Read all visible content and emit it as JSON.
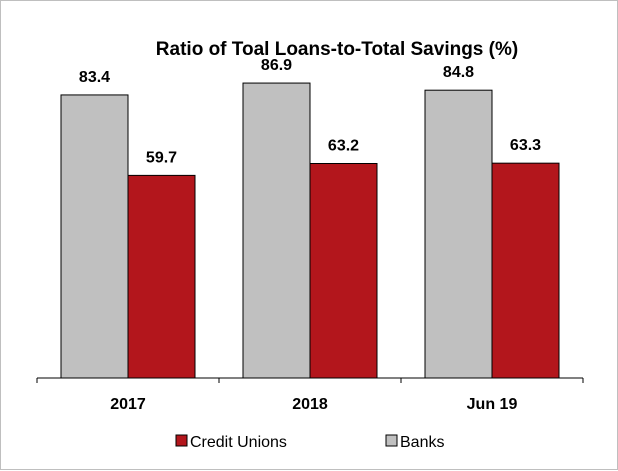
{
  "chart_data": {
    "type": "bar",
    "title": "Ratio of Toal Loans-to-Total Savings (%)",
    "categories": [
      "2017",
      "2018",
      "Jun 19"
    ],
    "series": [
      {
        "name": "Banks",
        "values": [
          83.4,
          86.9,
          84.8
        ],
        "color": "#c0c0c0"
      },
      {
        "name": "Credit Unions",
        "values": [
          59.7,
          63.2,
          63.3
        ],
        "color": "#b3161c"
      }
    ],
    "ylim": [
      0,
      100
    ],
    "grid": false,
    "legend_position": "bottom",
    "legend_order": [
      "Credit Unions",
      "Banks"
    ]
  }
}
